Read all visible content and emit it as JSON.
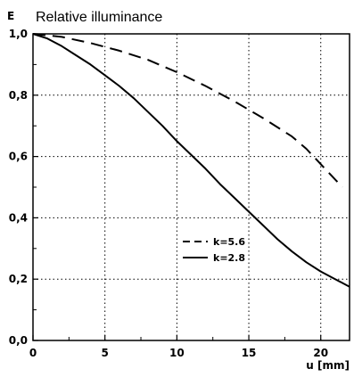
{
  "chart_data": {
    "type": "line",
    "title": "Relative illuminance",
    "ylabel": "E",
    "xlabel": "u [mm]",
    "xlim": [
      0,
      22
    ],
    "ylim": [
      0,
      1
    ],
    "xticks": [
      0,
      5,
      10,
      15,
      20
    ],
    "xtick_labels": [
      "0",
      "5",
      "10",
      "15",
      "20"
    ],
    "yticks": [
      0,
      0.2,
      0.4,
      0.6,
      0.8,
      1.0
    ],
    "ytick_labels": [
      "0,0",
      "0,2",
      "0,4",
      "0,6",
      "0,8",
      "1,0"
    ],
    "grid": true,
    "legend_position": "center-right",
    "series": [
      {
        "name": "k=5.6",
        "style": "dashed",
        "x": [
          0,
          1,
          2,
          4,
          6,
          8,
          10,
          12,
          14,
          16,
          18,
          19,
          20,
          21,
          21.5
        ],
        "y": [
          1.0,
          0.995,
          0.99,
          0.97,
          0.945,
          0.915,
          0.875,
          0.83,
          0.78,
          0.725,
          0.665,
          0.625,
          0.575,
          0.525,
          0.5
        ]
      },
      {
        "name": "k=2.8",
        "style": "solid",
        "x": [
          0,
          1,
          2,
          3,
          4,
          5,
          6,
          7,
          8,
          9,
          10,
          11,
          12,
          13,
          14,
          15,
          16,
          17,
          18,
          19,
          20,
          21,
          22
        ],
        "y": [
          1.0,
          0.985,
          0.96,
          0.93,
          0.9,
          0.865,
          0.83,
          0.79,
          0.745,
          0.7,
          0.65,
          0.605,
          0.56,
          0.51,
          0.465,
          0.42,
          0.375,
          0.33,
          0.29,
          0.255,
          0.225,
          0.2,
          0.175
        ]
      }
    ]
  }
}
